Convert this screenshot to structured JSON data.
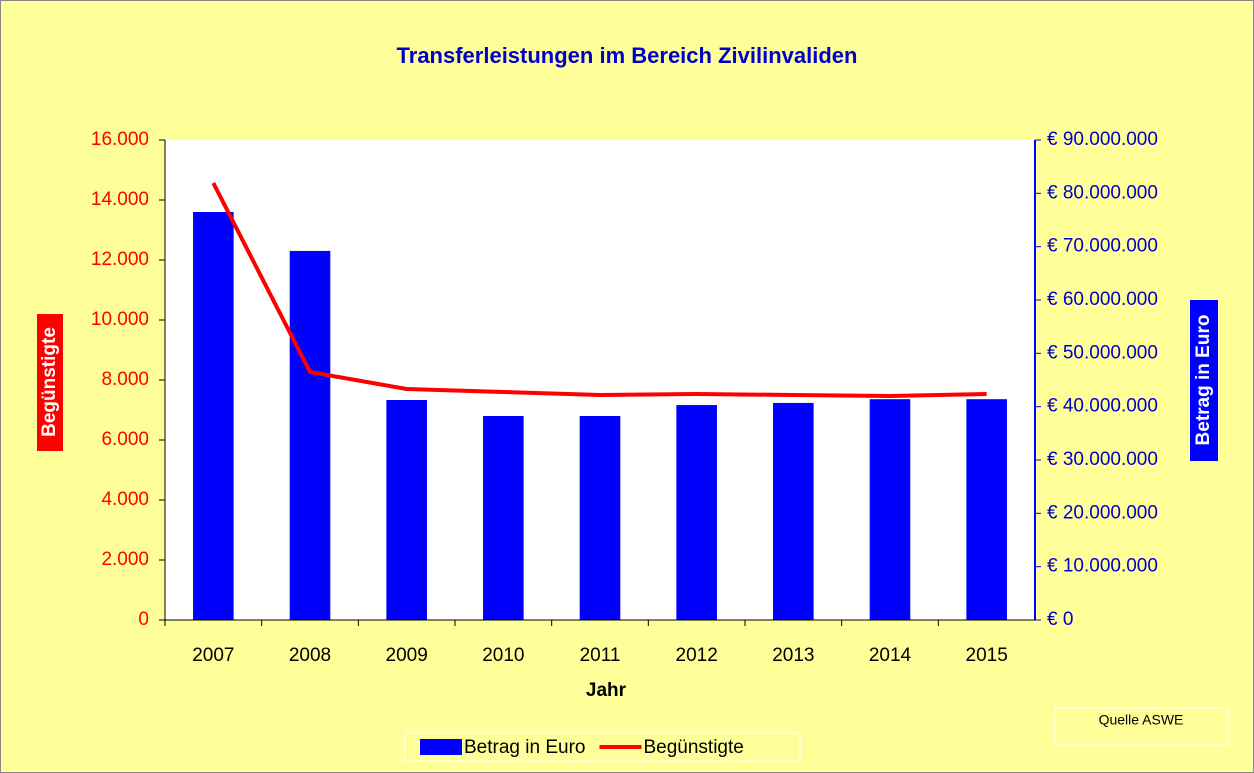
{
  "chart_data": {
    "type": "bar_line",
    "title": "Transferleistungen im Bereich Zivilinvaliden",
    "x_label": "Jahr",
    "y_label": "Begünstigte",
    "y2_label": "Betrag in Euro",
    "source": "Quelle ASWE",
    "categories": [
      "2007",
      "2008",
      "2009",
      "2010",
      "2011",
      "2012",
      "2013",
      "2014",
      "2015"
    ],
    "series": [
      {
        "name": "Betrag in Euro",
        "type": "bar",
        "axis": "y2",
        "color": "#0000ff",
        "values": [
          76500000,
          69200000,
          41250000,
          38250000,
          38250000,
          40300000,
          40700000,
          41400000,
          41400000
        ]
      },
      {
        "name": "Begünstigte",
        "type": "line",
        "axis": "y",
        "color": "#ff0000",
        "values": [
          14567,
          8267,
          7700,
          7600,
          7500,
          7533,
          7500,
          7467,
          7533
        ]
      }
    ],
    "ylim": [
      0,
      16000
    ],
    "yticks": [
      0,
      {
        "value": 2000,
        "label": "2.000"
      },
      {
        "value": 4000,
        "label": "4.000"
      },
      {
        "value": 6000,
        "label": "6.000"
      },
      {
        "value": 8000,
        "label": "8.000"
      },
      {
        "value": 10000,
        "label": "10.000"
      },
      {
        "value": 12000,
        "label": "12.000"
      },
      {
        "value": 14000,
        "label": "14.000"
      },
      {
        "value": 16000,
        "label": "16.000"
      }
    ],
    "y2lim": [
      0,
      90000000
    ],
    "y2ticks": [
      {
        "value": 0,
        "label": "€ 0"
      },
      {
        "value": 10000000,
        "label": "€ 10.000.000"
      },
      {
        "value": 20000000,
        "label": "€ 20.000.000"
      },
      {
        "value": 30000000,
        "label": "€ 30.000.000"
      },
      {
        "value": 40000000,
        "label": "€ 40.000.000"
      },
      {
        "value": 50000000,
        "label": "€ 50.000.000"
      },
      {
        "value": 60000000,
        "label": "€ 60.000.000"
      },
      {
        "value": 70000000,
        "label": "€ 70.000.000"
      },
      {
        "value": 80000000,
        "label": "€ 80.000.000"
      },
      {
        "value": 90000000,
        "label": "€ 90.000.000"
      }
    ],
    "legend": "bottom",
    "grid": false
  }
}
